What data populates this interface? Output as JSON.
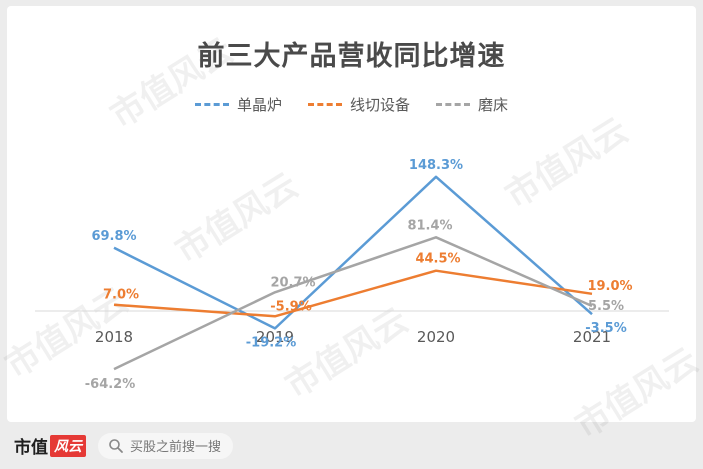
{
  "chart_data": {
    "type": "line",
    "title": "前三大产品营收同比增速",
    "categories": [
      "2018",
      "2019",
      "2020",
      "2021"
    ],
    "series": [
      {
        "name": "单晶炉",
        "color": "#5b9bd5",
        "values": [
          69.8,
          -19.2,
          148.3,
          -3.5
        ],
        "labels": [
          "69.8%",
          "-19.2%",
          "148.3%",
          "-3.5%"
        ]
      },
      {
        "name": "线切设备",
        "color": "#ed7d31",
        "values": [
          7.0,
          -5.9,
          44.5,
          19.0
        ],
        "labels": [
          "7.0%",
          "-5.9%",
          "44.5%",
          "19.0%"
        ]
      },
      {
        "name": "磨床",
        "color": "#a5a5a5",
        "values": [
          -64.2,
          20.7,
          81.4,
          5.5
        ],
        "labels": [
          "-64.2%",
          "20.7%",
          "81.4%",
          "5.5%"
        ]
      }
    ],
    "ylim": [
      -80,
      160
    ],
    "grid": false,
    "legend": "top-center"
  },
  "watermark": "市值风云",
  "footer": {
    "brand_text": "市值",
    "brand_mark": "风云",
    "search_placeholder": "买股之前搜一搜",
    "search_icon": "search-icon"
  }
}
